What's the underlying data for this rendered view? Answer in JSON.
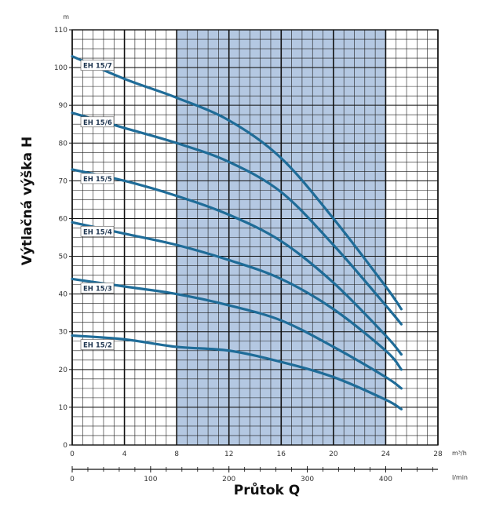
{
  "chart_data": {
    "type": "line",
    "title": "",
    "xlabel": "Průtok Q",
    "ylabel": "Výtlačná výška H",
    "y_unit": "m",
    "x_unit": "m³/h",
    "x2_unit": "l/min",
    "xlim": [
      0,
      28
    ],
    "ylim": [
      0,
      110
    ],
    "x2lim": [
      0,
      466.67
    ],
    "x_ticks": [
      "0",
      "4",
      "8",
      "12",
      "16",
      "20",
      "24",
      "28"
    ],
    "x2_ticks": [
      "0",
      "100",
      "200",
      "300",
      "400"
    ],
    "y_ticks": [
      "0",
      "10",
      "20",
      "30",
      "40",
      "50",
      "60",
      "70",
      "80",
      "90",
      "100",
      "110"
    ],
    "grid": true,
    "highlight_region": {
      "x_from": 8,
      "x_to": 24,
      "color": "#b4c8e2"
    },
    "line_color": "#1f6c98",
    "series": [
      {
        "name": "EH 15/7",
        "x": [
          0,
          4,
          8,
          12,
          16,
          20,
          24,
          25.2
        ],
        "y": [
          103,
          97,
          92,
          86,
          76,
          60,
          42,
          36
        ]
      },
      {
        "name": "EH 15/6",
        "x": [
          0,
          4,
          8,
          12,
          16,
          20,
          24,
          25.2
        ],
        "y": [
          88,
          84,
          80,
          75,
          67,
          53,
          37,
          32
        ]
      },
      {
        "name": "EH 15/5",
        "x": [
          0,
          4,
          8,
          12,
          16,
          20,
          24,
          25.2
        ],
        "y": [
          73,
          70,
          66,
          61,
          54,
          43,
          29,
          24
        ]
      },
      {
        "name": "EH 15/4",
        "x": [
          0,
          4,
          8,
          12,
          16,
          20,
          24,
          25.2
        ],
        "y": [
          59,
          56,
          53,
          49,
          44,
          36,
          25,
          20
        ]
      },
      {
        "name": "EH 15/3",
        "x": [
          0,
          4,
          8,
          12,
          16,
          20,
          24,
          25.2
        ],
        "y": [
          44,
          42,
          40,
          37,
          33,
          26,
          18,
          15
        ]
      },
      {
        "name": "EH 15/2",
        "x": [
          0,
          4,
          8,
          12,
          16,
          20,
          24,
          25.2
        ],
        "y": [
          29,
          28,
          26,
          25,
          22,
          18,
          12,
          9.5
        ]
      }
    ]
  }
}
